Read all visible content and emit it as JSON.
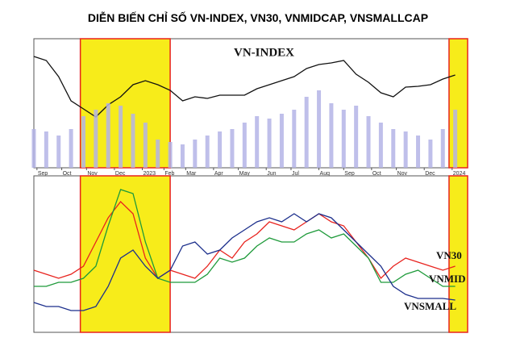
{
  "chart_data": [
    {
      "type": "line",
      "title": "DIỄN BIẾN CHỈ SỐ VN-INDEX, VN30, VNMIDCAP, VNSMALLCAP",
      "x": [
        0,
        2,
        4,
        6,
        8,
        10,
        12,
        14,
        16,
        18,
        20,
        22,
        24,
        26,
        28,
        30,
        32,
        34,
        36,
        38,
        40,
        42,
        44,
        46,
        48,
        50,
        52,
        54,
        56,
        58,
        60,
        62,
        64,
        66,
        68
      ],
      "xlim": [
        0,
        70
      ],
      "xticks": [
        {
          "value": 0.5,
          "label": "Sep"
        },
        {
          "value": 4.5,
          "label": "Oct"
        },
        {
          "value": 8.5,
          "label": "Nov"
        },
        {
          "value": 13,
          "label": "Dec"
        },
        {
          "value": 17.5,
          "label": "2023"
        },
        {
          "value": 21,
          "label": "Feb"
        },
        {
          "value": 24.5,
          "label": "Mar"
        },
        {
          "value": 29,
          "label": "Apr"
        },
        {
          "value": 33,
          "label": "May"
        },
        {
          "value": 37.5,
          "label": "Jun"
        },
        {
          "value": 41.5,
          "label": "Jul"
        },
        {
          "value": 46,
          "label": "Aug"
        },
        {
          "value": 50,
          "label": "Sep"
        },
        {
          "value": 54.5,
          "label": "Oct"
        },
        {
          "value": 58.5,
          "label": "Nov"
        },
        {
          "value": 63,
          "label": "Dec"
        },
        {
          "value": 67.5,
          "label": "2024"
        }
      ],
      "ylim": [
        0,
        160
      ],
      "highlights": [
        [
          7.5,
          22
        ],
        [
          67,
          70
        ]
      ],
      "highlight_color": "#f7ec1a",
      "series": [
        {
          "name": "VN-INDEX",
          "color": "#111111",
          "values": [
            138,
            133,
            113,
            83,
            73,
            63,
            78,
            88,
            103,
            108,
            103,
            96,
            83,
            88,
            86,
            90,
            90,
            90,
            98,
            103,
            108,
            113,
            123,
            128,
            130,
            133,
            116,
            106,
            93,
            88,
            100,
            101,
            103,
            110,
            115
          ]
        },
        {
          "type": "bar",
          "color": "#b4b4e6",
          "values": [
            48,
            45,
            40,
            48,
            64,
            72,
            80,
            77,
            67,
            56,
            35,
            32,
            29,
            35,
            40,
            45,
            48,
            56,
            64,
            61,
            67,
            72,
            88,
            96,
            80,
            72,
            77,
            64,
            56,
            48,
            45,
            40,
            35,
            48,
            72
          ]
        }
      ]
    },
    {
      "type": "line",
      "x": [
        0,
        2,
        4,
        6,
        8,
        10,
        12,
        14,
        16,
        18,
        20,
        22,
        24,
        26,
        28,
        30,
        32,
        34,
        36,
        38,
        40,
        42,
        44,
        46,
        48,
        50,
        52,
        54,
        56,
        58,
        60,
        62,
        64,
        66,
        68
      ],
      "xlim": [
        0,
        70
      ],
      "ylim": [
        0,
        194
      ],
      "highlights": [
        [
          7.5,
          22
        ],
        [
          67,
          70
        ]
      ],
      "highlight_color": "#f7ec1a",
      "series": [
        {
          "name": "VN30",
          "color": "#e8231e",
          "values": [
            77,
            72,
            67,
            72,
            82,
            112,
            142,
            162,
            147,
            92,
            67,
            77,
            72,
            67,
            82,
            102,
            92,
            112,
            122,
            137,
            132,
            127,
            137,
            147,
            137,
            132,
            112,
            92,
            67,
            82,
            92,
            87,
            82,
            77,
            82
          ]
        },
        {
          "name": "VNMID",
          "color": "#1e9a3a",
          "values": [
            57,
            57,
            62,
            62,
            67,
            82,
            132,
            177,
            172,
            112,
            67,
            62,
            62,
            62,
            72,
            92,
            87,
            92,
            107,
            117,
            112,
            112,
            122,
            127,
            117,
            122,
            107,
            92,
            62,
            62,
            72,
            77,
            67,
            57,
            57
          ]
        },
        {
          "name": "VNSMALL",
          "color": "#1c2f8c",
          "values": [
            37,
            32,
            32,
            27,
            27,
            32,
            57,
            92,
            102,
            82,
            67,
            77,
            107,
            112,
            97,
            102,
            117,
            127,
            137,
            142,
            137,
            147,
            137,
            147,
            142,
            127,
            112,
            97,
            82,
            57,
            47,
            42,
            42,
            42,
            40
          ]
        }
      ]
    }
  ]
}
